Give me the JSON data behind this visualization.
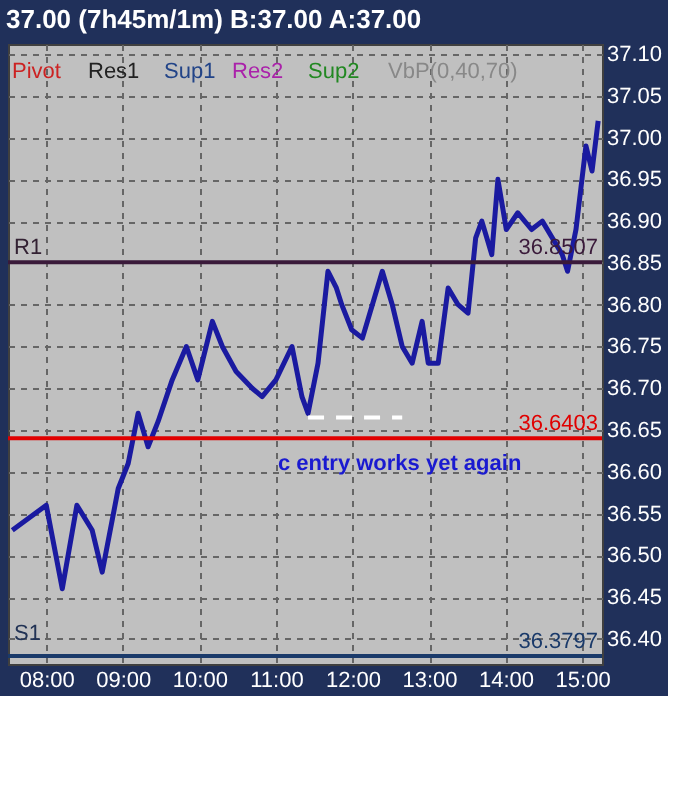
{
  "chart_data": {
    "type": "line",
    "title": "37.00 (7h45m/1m)  B:37.00 A:37.00",
    "x": [
      7.556,
      8.0,
      8.209,
      8.4,
      8.6,
      8.731,
      8.94,
      9.07,
      9.2,
      9.33,
      9.46,
      9.645,
      9.83,
      9.98,
      10.17,
      10.3,
      10.48,
      10.69,
      10.82,
      11.0,
      11.21,
      11.34,
      11.42,
      11.55,
      11.68,
      11.79,
      11.86,
      11.99,
      12.13,
      12.26,
      12.39,
      12.52,
      12.65,
      12.78,
      12.91,
      12.99,
      13.12,
      13.25,
      13.38,
      13.51,
      13.61,
      13.69,
      13.82,
      13.9,
      14.01,
      14.16,
      14.34,
      14.48,
      14.74,
      14.81,
      14.92,
      15.05,
      15.13,
      15.21
    ],
    "series": [
      {
        "color": "#1a1aa0",
        "values": [
          36.53,
          36.56,
          36.46,
          36.56,
          36.53,
          36.48,
          36.58,
          36.61,
          36.67,
          36.63,
          36.66,
          36.71,
          36.75,
          36.71,
          36.78,
          36.75,
          36.72,
          36.7,
          36.69,
          36.71,
          36.75,
          36.69,
          36.67,
          36.73,
          36.84,
          36.82,
          36.8,
          36.77,
          36.76,
          36.8,
          36.84,
          36.8,
          36.75,
          36.73,
          36.78,
          36.73,
          36.73,
          36.82,
          36.8,
          36.79,
          36.88,
          36.9,
          36.86,
          36.95,
          36.89,
          36.91,
          36.89,
          36.9,
          36.86,
          36.84,
          36.89,
          36.99,
          36.96,
          37.02
        ]
      },
      {
        "color": "#ffffff",
        "line_style": "dashed",
        "x": [
          11.42,
          12.65
        ],
        "values": [
          36.665,
          36.665
        ]
      }
    ],
    "xlim": [
      7.5,
      15.26
    ],
    "ylim": [
      36.37,
      37.112
    ],
    "xticks": [
      {
        "value": 8,
        "label": "08:00"
      },
      {
        "value": 9,
        "label": "09:00"
      },
      {
        "value": 10,
        "label": "10:00"
      },
      {
        "value": 11,
        "label": "11:00"
      },
      {
        "value": 12,
        "label": "12:00"
      },
      {
        "value": 13,
        "label": "13:00"
      },
      {
        "value": 14,
        "label": "14:00"
      },
      {
        "value": 15,
        "label": "15:00"
      }
    ],
    "yticks": [
      {
        "value": 36.4,
        "label": "36.40"
      },
      {
        "value": 36.45,
        "label": "36.45"
      },
      {
        "value": 36.5,
        "label": "36.50"
      },
      {
        "value": 36.55,
        "label": "36.55"
      },
      {
        "value": 36.6,
        "label": "36.60"
      },
      {
        "value": 36.65,
        "label": "36.65"
      },
      {
        "value": 36.7,
        "label": "36.70"
      },
      {
        "value": 36.75,
        "label": "36.75"
      },
      {
        "value": 36.8,
        "label": "36.80"
      },
      {
        "value": 36.85,
        "label": "36.85"
      },
      {
        "value": 36.9,
        "label": "36.90"
      },
      {
        "value": 36.95,
        "label": "36.95"
      },
      {
        "value": 37.0,
        "label": "37.00"
      },
      {
        "value": 37.05,
        "label": "37.05"
      },
      {
        "value": 37.1,
        "label": "37.10"
      }
    ],
    "ref_lines": [
      {
        "axis": "y",
        "value": 36.8507,
        "label": "36.8507",
        "color": "#3a1a3a"
      },
      {
        "axis": "y",
        "value": 36.6403,
        "label": "36.6403",
        "color": "#e00000"
      },
      {
        "axis": "y",
        "value": 36.3797,
        "label": "36.3797",
        "color": "#1a3a6a"
      }
    ],
    "annotations": [
      "Pivot",
      "Res1",
      "Sup1",
      "Res2",
      "Sup2",
      "VbP(0,40,70)",
      "R1",
      "S1",
      "c entry works yet again"
    ],
    "grid": true
  }
}
